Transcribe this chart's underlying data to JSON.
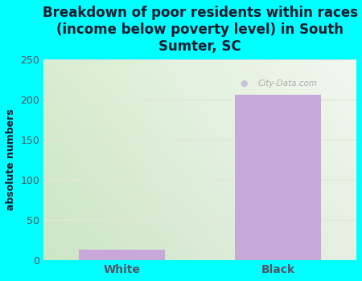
{
  "categories": [
    "White",
    "Black"
  ],
  "values": [
    13,
    206
  ],
  "bar_color": "#c8a8d8",
  "background_color": "#00ffff",
  "plot_bg_color_topleft": "#d8eece",
  "plot_bg_color_topright": "#f0f8f0",
  "plot_bg_color_bottomleft": "#c8e8b8",
  "title": "Breakdown of poor residents within races\n(income below poverty level) in South\nSumter, SC",
  "ylabel": "absolute numbers",
  "ylim": [
    0,
    250
  ],
  "yticks": [
    0,
    50,
    100,
    150,
    200,
    250
  ],
  "title_fontsize": 12,
  "title_color": "#1a1a2e",
  "tick_color": "#555566",
  "watermark": "City-Data.com",
  "grid_color": "#e0e8d8"
}
